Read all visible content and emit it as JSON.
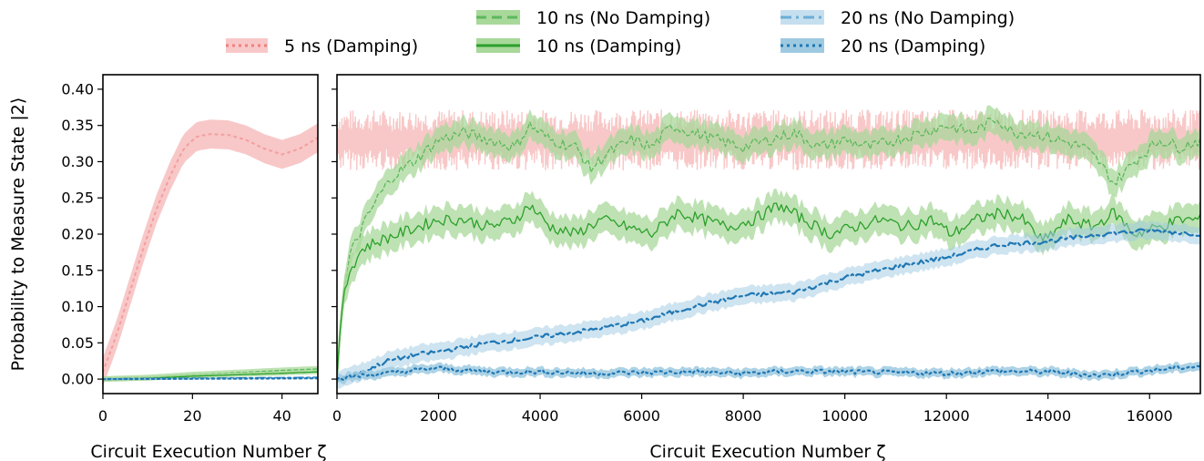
{
  "colors": {
    "pink": "#f4a0a0",
    "pink_band": "#f8c8c8",
    "green": "#2ca02c",
    "green_light": "#5cb85c",
    "green_band": "#a8d89a",
    "blue": "#1f77b4",
    "blue_band": "#9ecae1"
  },
  "legend": [
    {
      "label": "5 ns (Damping)",
      "color": "#f08080",
      "style": "dotted"
    },
    {
      "label": "10 ns (No Damping)",
      "color": "#5cb85c",
      "style": "dashed"
    },
    {
      "label": "10 ns (Damping)",
      "color": "#2ca02c",
      "style": "solid"
    },
    {
      "label": "20 ns (No Damping)",
      "color": "#6baed6",
      "style": "dashdot"
    },
    {
      "label": "20 ns (Damping)",
      "color": "#1f77b4",
      "style": "dotted"
    }
  ],
  "chart_data": [
    {
      "type": "line",
      "xlabel": "Circuit Execution Number ζ",
      "ylabel": "Probability to Measure State |2⟩",
      "xlim": [
        0,
        48
      ],
      "ylim": [
        -0.02,
        0.42
      ],
      "xticks": [
        "0",
        "20",
        "40"
      ],
      "yticks": [
        "0.00",
        "0.05",
        "0.10",
        "0.15",
        "0.20",
        "0.25",
        "0.30",
        "0.35",
        "0.40"
      ],
      "series": [
        {
          "name": "5 ns (Damping)",
          "x": [
            0,
            3,
            6,
            9,
            12,
            15,
            18,
            21,
            24,
            28,
            32,
            36,
            40,
            44,
            48
          ],
          "y": [
            0.01,
            0.06,
            0.12,
            0.18,
            0.235,
            0.28,
            0.318,
            0.335,
            0.338,
            0.337,
            0.33,
            0.318,
            0.31,
            0.318,
            0.333
          ],
          "band": 0.02
        },
        {
          "name": "10 ns (No Damping)",
          "x": [
            0,
            10,
            20,
            30,
            40,
            48
          ],
          "y": [
            0.0,
            0.002,
            0.006,
            0.009,
            0.012,
            0.014
          ],
          "band": 0.004
        },
        {
          "name": "10 ns (Damping)",
          "x": [
            0,
            10,
            20,
            30,
            40,
            48
          ],
          "y": [
            0.0,
            0.001,
            0.004,
            0.006,
            0.008,
            0.01
          ],
          "band": 0.003
        },
        {
          "name": "20 ns (No Damping)",
          "x": [
            0,
            48
          ],
          "y": [
            0.0,
            0.002
          ],
          "band": 0.001
        },
        {
          "name": "20 ns (Damping)",
          "x": [
            0,
            48
          ],
          "y": [
            0.0,
            0.001
          ],
          "band": 0.001
        }
      ]
    },
    {
      "type": "line",
      "xlabel": "Circuit Execution Number ζ",
      "ylabel": "",
      "xlim": [
        0,
        17000
      ],
      "ylim": [
        -0.02,
        0.42
      ],
      "xticks": [
        "0",
        "2000",
        "4000",
        "6000",
        "8000",
        "10000",
        "12000",
        "14000",
        "16000"
      ],
      "series": [
        {
          "name": "5 ns (Damping)",
          "x": [
            0,
            17000
          ],
          "y": [
            0.33,
            0.33
          ],
          "band": 0.03
        },
        {
          "name": "10 ns (No Damping)",
          "x": [
            0,
            100,
            250,
            500,
            800,
            1100,
            1500,
            2000,
            2500,
            3000,
            3500,
            3800,
            4200,
            4700,
            5000,
            5300,
            5800,
            6200,
            6600,
            7000,
            7500,
            8000,
            8500,
            9000,
            9500,
            10000,
            10500,
            11000,
            11500,
            12000,
            12500,
            13000,
            13300,
            13700,
            14200,
            14700,
            15000,
            15300,
            15700,
            16200,
            16600,
            17000
          ],
          "y": [
            0.0,
            0.1,
            0.17,
            0.21,
            0.25,
            0.28,
            0.3,
            0.33,
            0.34,
            0.33,
            0.32,
            0.35,
            0.33,
            0.32,
            0.29,
            0.31,
            0.33,
            0.32,
            0.35,
            0.34,
            0.33,
            0.32,
            0.33,
            0.34,
            0.32,
            0.33,
            0.32,
            0.33,
            0.34,
            0.35,
            0.34,
            0.36,
            0.34,
            0.34,
            0.33,
            0.32,
            0.3,
            0.27,
            0.3,
            0.33,
            0.32,
            0.33
          ],
          "band": 0.018
        },
        {
          "name": "10 ns (Damping)",
          "x": [
            0,
            100,
            250,
            500,
            800,
            1200,
            1600,
            2000,
            2500,
            3000,
            3500,
            3800,
            4200,
            4700,
            5200,
            5700,
            6200,
            6700,
            7200,
            7700,
            8200,
            8700,
            9200,
            9700,
            10200,
            10700,
            11200,
            11700,
            12100,
            12600,
            13100,
            13500,
            13900,
            14400,
            14900,
            15300,
            15700,
            16200,
            16600,
            17000
          ],
          "y": [
            0.0,
            0.1,
            0.15,
            0.18,
            0.19,
            0.2,
            0.21,
            0.22,
            0.22,
            0.21,
            0.22,
            0.24,
            0.21,
            0.2,
            0.22,
            0.21,
            0.2,
            0.23,
            0.22,
            0.21,
            0.22,
            0.24,
            0.22,
            0.2,
            0.21,
            0.22,
            0.21,
            0.22,
            0.2,
            0.22,
            0.23,
            0.22,
            0.19,
            0.22,
            0.21,
            0.23,
            0.2,
            0.21,
            0.22,
            0.22
          ],
          "band": 0.02
        },
        {
          "name": "20 ns (No Damping)",
          "x": [
            0,
            500,
            1000,
            1500,
            2000,
            3000,
            4000,
            5000,
            6000,
            7000,
            8000,
            9000,
            10000,
            11000,
            12000,
            13000,
            14000,
            15000,
            16000,
            17000
          ],
          "y": [
            0.0,
            0.01,
            0.025,
            0.033,
            0.038,
            0.05,
            0.058,
            0.068,
            0.08,
            0.1,
            0.115,
            0.12,
            0.14,
            0.155,
            0.168,
            0.185,
            0.19,
            0.2,
            0.205,
            0.2
          ],
          "band": 0.012
        },
        {
          "name": "20 ns (Damping)",
          "x": [
            0,
            500,
            1000,
            1500,
            2000,
            3000,
            4000,
            5000,
            6000,
            7000,
            8000,
            9000,
            10000,
            11000,
            12000,
            13000,
            14000,
            15000,
            16000,
            17000
          ],
          "y": [
            0.0,
            0.005,
            0.008,
            0.012,
            0.015,
            0.01,
            0.01,
            0.008,
            0.009,
            0.01,
            0.008,
            0.011,
            0.01,
            0.009,
            0.008,
            0.011,
            0.01,
            0.005,
            0.012,
            0.018
          ],
          "band": 0.006
        }
      ]
    }
  ]
}
